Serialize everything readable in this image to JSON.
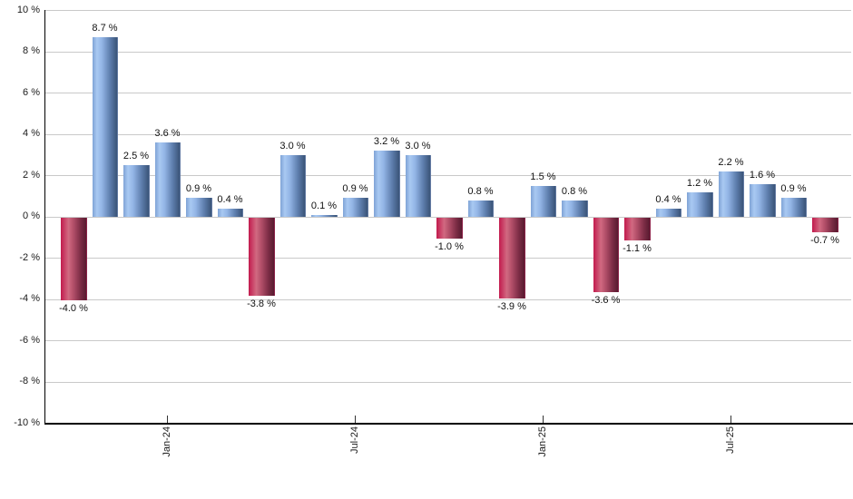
{
  "chart_data": {
    "type": "bar",
    "title": "",
    "xlabel": "",
    "ylabel": "",
    "values": [
      -4.0,
      8.7,
      2.5,
      3.6,
      0.9,
      0.4,
      -3.8,
      3.0,
      0.1,
      0.9,
      3.2,
      3.0,
      -1.0,
      0.8,
      -3.9,
      1.5,
      0.8,
      -3.6,
      -1.1,
      0.4,
      1.2,
      2.2,
      1.6,
      0.9,
      -0.7
    ],
    "bar_labels": [
      "-4.0 %",
      "8.7 %",
      "2.5 %",
      "3.6 %",
      "0.9 %",
      "0.4 %",
      "-3.8 %",
      "3.0 %",
      "0.1 %",
      "0.9 %",
      "3.2 %",
      "3.0 %",
      "-1.0 %",
      "0.8 %",
      "-3.9 %",
      "1.5 %",
      "0.8 %",
      "-3.6 %",
      "-1.1 %",
      "0.4 %",
      "1.2 %",
      "2.2 %",
      "1.6 %",
      "0.9 %",
      "-0.7 %"
    ],
    "y_tick_labels": [
      "10 %",
      "8 %",
      "6 %",
      "4 %",
      "2 %",
      "0 %",
      "-2 %",
      "-4 %",
      "-6 %",
      "-8 %",
      "-10 %"
    ],
    "x_ticks": [
      {
        "label": "Jan-24",
        "bar_index": 3
      },
      {
        "label": "Jul-24",
        "bar_index": 9
      },
      {
        "label": "Jan-25",
        "bar_index": 15
      },
      {
        "label": "Jul-25",
        "bar_index": 21
      }
    ],
    "ylim": [
      -10,
      10
    ],
    "y_step": 2,
    "grid": true,
    "legend": "none",
    "colors": {
      "positive_bar_light": "#a9c9f2",
      "positive_bar_dark": "#3a5478",
      "negative_bar_light": "#d16981",
      "negative_bar_dark": "#581b30",
      "gridline": "#c9c9c9",
      "axis": "#000000",
      "text": "#1a1a1a"
    }
  }
}
